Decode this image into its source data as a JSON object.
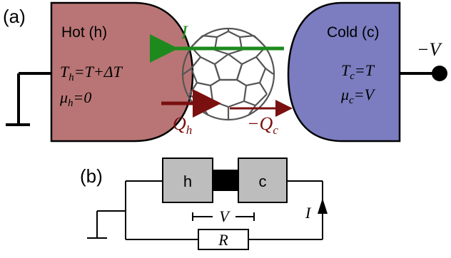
{
  "panel_a": {
    "label": "(a)",
    "hot": {
      "title": "Hot (h)",
      "temp_lhs": "T",
      "temp_sub": "h",
      "temp_rhs": "=T+ΔT",
      "mu_lhs": "μ",
      "mu_sub": "h",
      "mu_rhs": "=0"
    },
    "cold": {
      "title": "Cold (c)",
      "temp_lhs": "T",
      "temp_sub": "c",
      "temp_rhs": "=T",
      "mu_lhs": "μ",
      "mu_sub": "c",
      "mu_rhs": "=V"
    },
    "current_label": "I",
    "heat_hot_main": "Q",
    "heat_hot_sub": "h",
    "heat_cold_main": "−Q",
    "heat_cold_sub": "c",
    "voltage_label": "−V",
    "colors": {
      "hot_fill": "#b97575",
      "cold_fill": "#7b7dc0",
      "current_arrow": "#1e8a1e",
      "heat_arrow": "#7a1010",
      "molecule": "#555555"
    }
  },
  "panel_b": {
    "label": "(b)",
    "hot_box": "h",
    "cold_box": "c",
    "voltage_label": "V",
    "current_label": "I",
    "resistor_label": "R",
    "colors": {
      "box_fill": "#bdbdbd"
    }
  }
}
